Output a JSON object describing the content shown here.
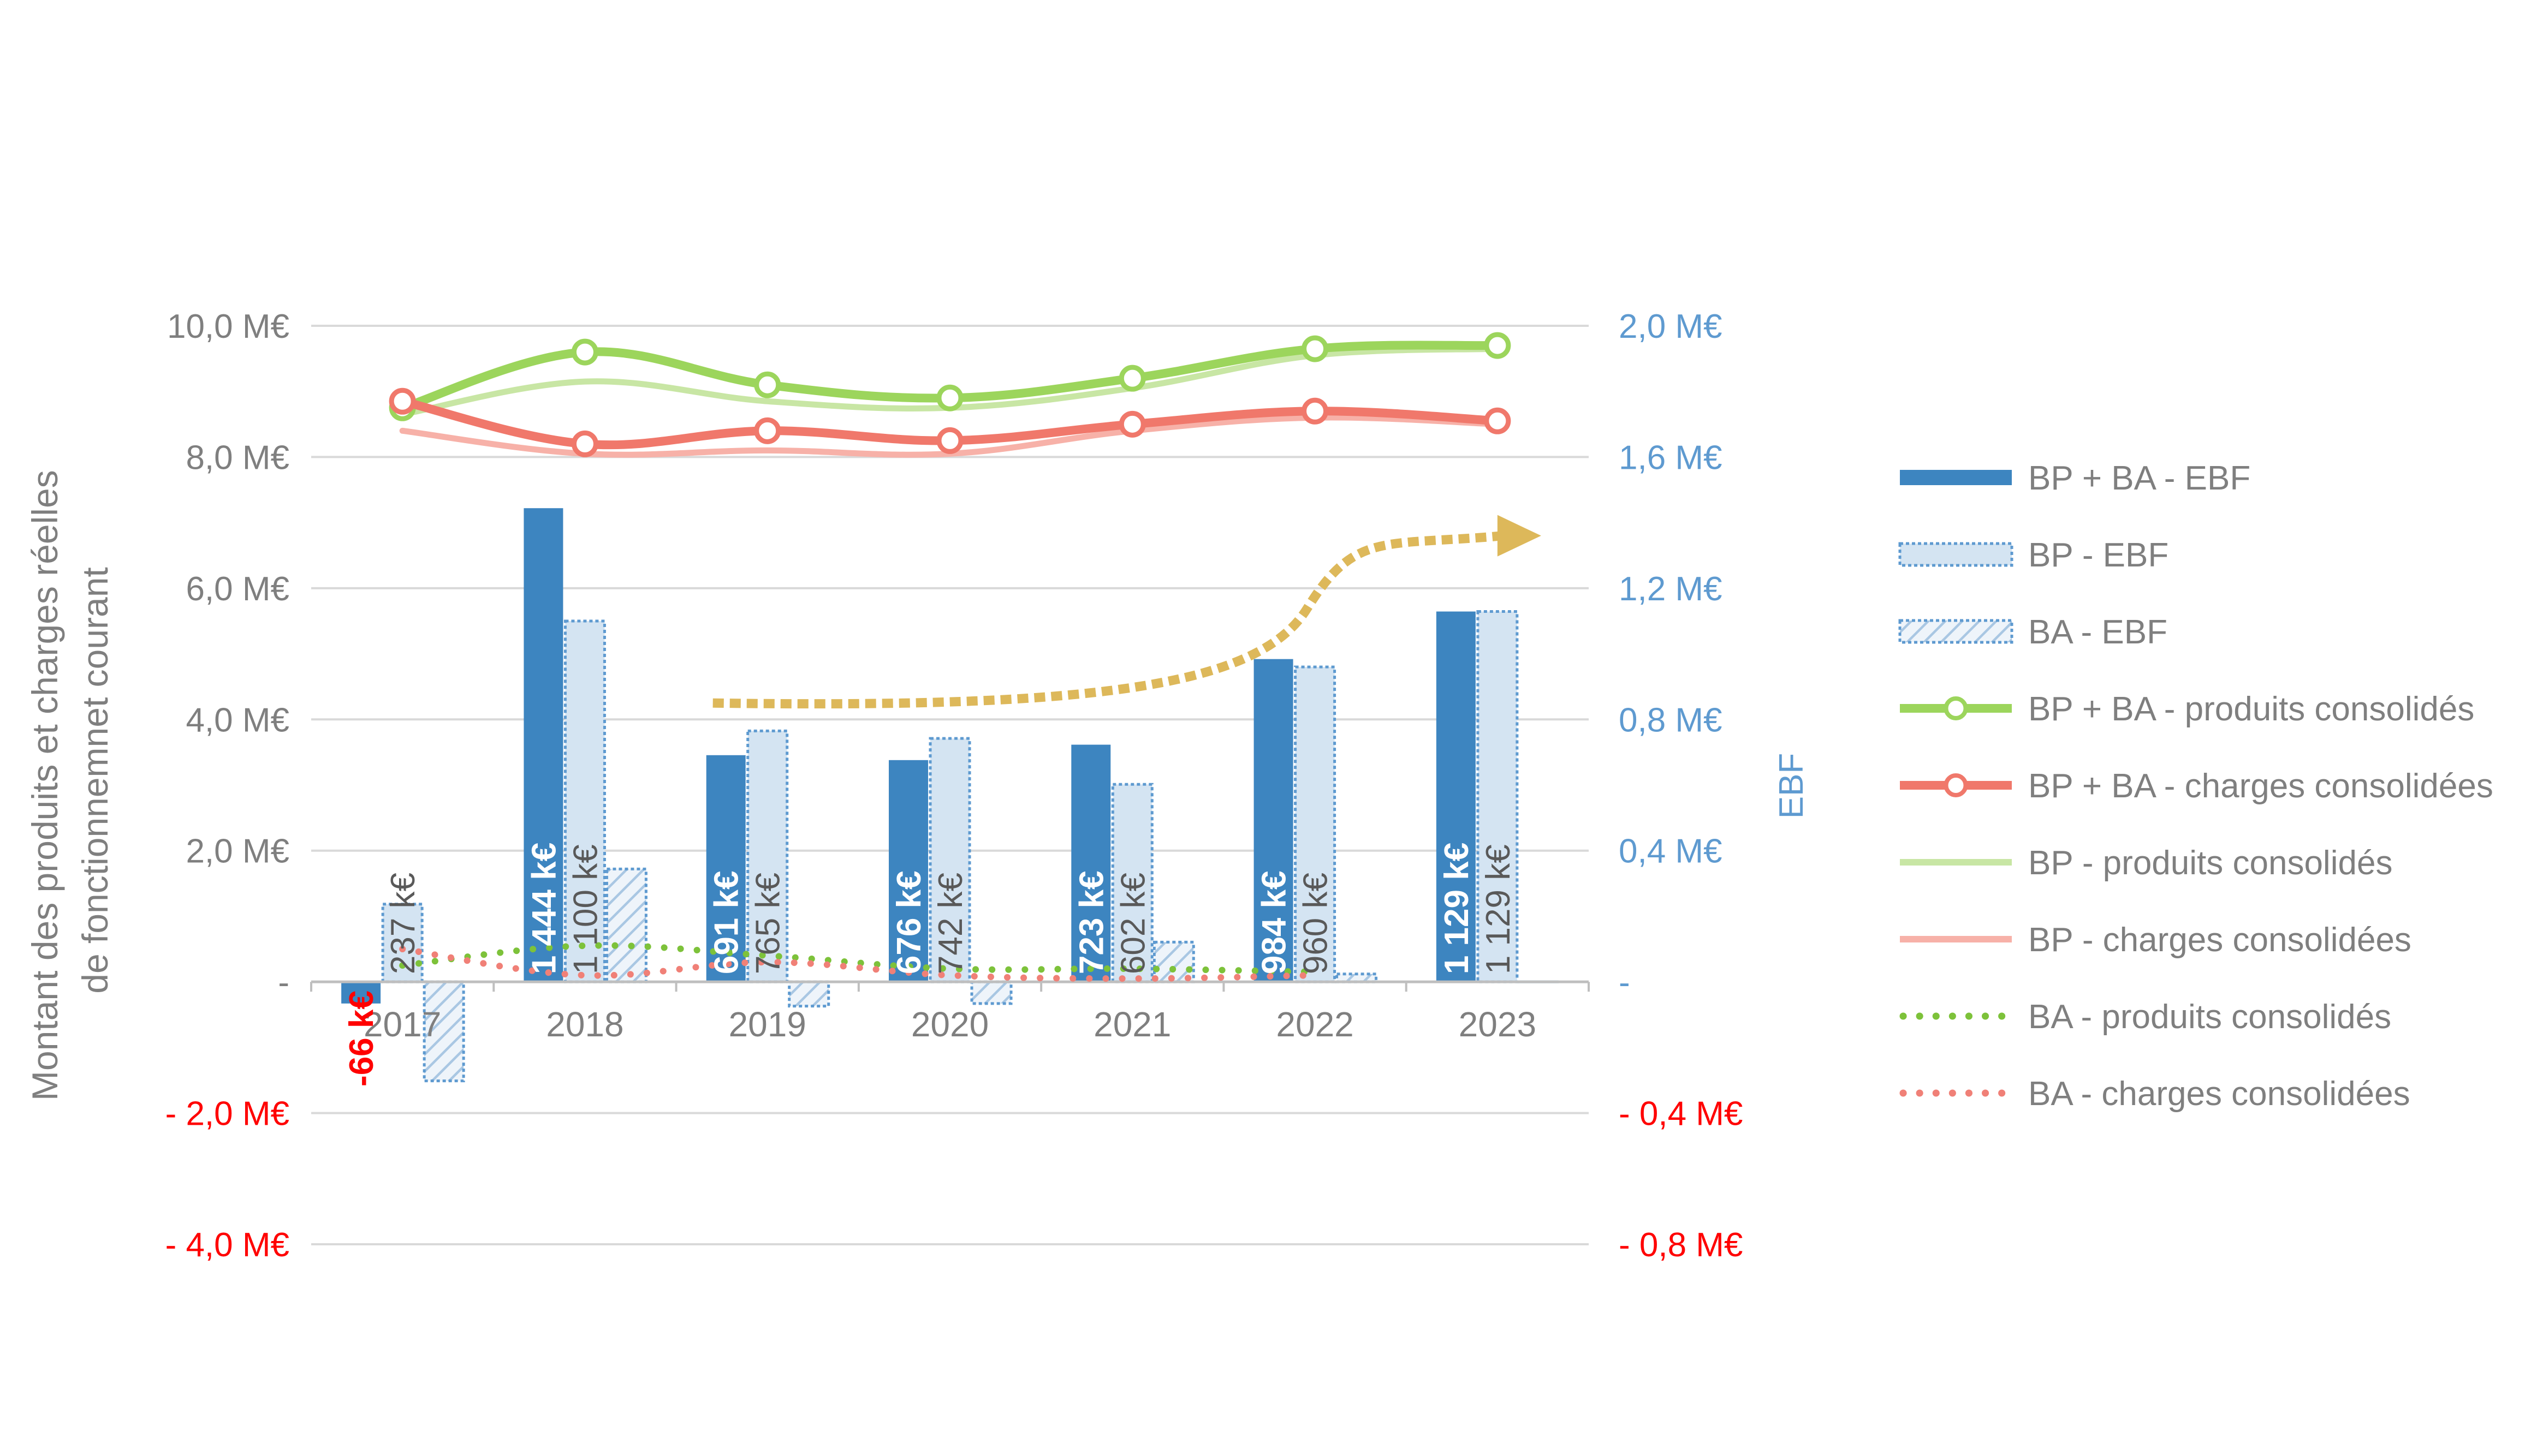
{
  "chart_data": {
    "type": "bar",
    "categories": [
      "2017",
      "2018",
      "2019",
      "2020",
      "2021",
      "2022",
      "2023"
    ],
    "left_axis": {
      "title": "Montant des produits et charges réelles de fonctionnemnet courant",
      "title_lines": [
        "Montant des produits et charges réelles",
        "de fonctionnemnet courant"
      ],
      "ticks": [
        {
          "value": 10,
          "label": "10,0 M€",
          "negative": false
        },
        {
          "value": 8,
          "label": "8,0 M€",
          "negative": false
        },
        {
          "value": 6,
          "label": "6,0 M€",
          "negative": false
        },
        {
          "value": 4,
          "label": "4,0 M€",
          "negative": false
        },
        {
          "value": 2,
          "label": "2,0 M€",
          "negative": false
        },
        {
          "value": 0,
          "label": "-",
          "negative": false
        },
        {
          "value": -2,
          "label": "- 2,0 M€",
          "negative": true
        },
        {
          "value": -4,
          "label": "- 4,0 M€",
          "negative": true
        }
      ],
      "range": [
        -4,
        10
      ],
      "unit": "M€"
    },
    "right_axis": {
      "title": "EBF",
      "ticks": [
        {
          "value": 2,
          "label": "2,0 M€",
          "negative": false
        },
        {
          "value": 1.6,
          "label": "1,6 M€",
          "negative": false
        },
        {
          "value": 1.2,
          "label": "1,2 M€",
          "negative": false
        },
        {
          "value": 0.8,
          "label": "0,8 M€",
          "negative": false
        },
        {
          "value": 0.4,
          "label": "0,4 M€",
          "negative": false
        },
        {
          "value": 0,
          "label": "-",
          "negative": false
        },
        {
          "value": -0.4,
          "label": "- 0,4 M€",
          "negative": true
        },
        {
          "value": -0.8,
          "label": "- 0,8 M€",
          "negative": true
        }
      ],
      "range": [
        -0.8,
        2
      ],
      "unit": "M€"
    },
    "bar_series": [
      {
        "name": "BP + BA - EBF",
        "axis": "right",
        "values_keur": [
          -66,
          1444,
          691,
          676,
          723,
          984,
          1129
        ],
        "labels": [
          "-66 k€",
          "1 444 k€",
          "691 k€",
          "676 k€",
          "723 k€",
          "984 k€",
          "1 129 k€"
        ]
      },
      {
        "name": "BP - EBF",
        "axis": "right",
        "values_keur": [
          237,
          1100,
          765,
          742,
          602,
          960,
          1129
        ],
        "labels": [
          "237 k€",
          "1 100 k€",
          "765 k€",
          "742 k€",
          "602 k€",
          "960 k€",
          "1 129 k€"
        ]
      },
      {
        "name": "BA - EBF",
        "axis": "right",
        "values_keur": [
          -302,
          344,
          -74,
          -66,
          121,
          24,
          0
        ],
        "labels": []
      }
    ],
    "line_series": [
      {
        "name": "BP + BA - produits consolidés",
        "axis": "left",
        "values": [
          8.75,
          9.6,
          9.1,
          8.9,
          9.2,
          9.65,
          9.7
        ]
      },
      {
        "name": "BP + BA - charges consolidées",
        "axis": "left",
        "values": [
          8.85,
          8.2,
          8.4,
          8.25,
          8.5,
          8.7,
          8.55
        ]
      },
      {
        "name": "BP - produits consolidés",
        "axis": "left",
        "values": [
          8.65,
          9.15,
          8.85,
          8.75,
          9.05,
          9.55,
          9.65
        ]
      },
      {
        "name": "BP - charges consolidées",
        "axis": "left",
        "values": [
          8.4,
          8.05,
          8.1,
          8.05,
          8.4,
          8.6,
          8.5
        ]
      },
      {
        "name": "BA - produits consolidés",
        "axis": "left",
        "values": [
          0.25,
          0.55,
          0.4,
          0.2,
          0.2,
          0.15
        ]
      },
      {
        "name": "BA - charges consolidées",
        "axis": "left",
        "values": [
          0.5,
          0.1,
          0.3,
          0.1,
          0.05,
          0.1
        ]
      }
    ],
    "legend": {
      "position": "right"
    },
    "grid": {
      "horizontal": true,
      "vertical": false
    },
    "trend_arrow": {
      "from_category": "2019",
      "to_category": "2023"
    },
    "colors": {
      "ebf_total": "#3D85C0",
      "ebf_bp_fill": "#D4E4F2",
      "ebf_bp_border": "#5E9AD0",
      "ebf_ba_hatch": "#A9C7E3",
      "produits_total": "#9CD55C",
      "charges_total": "#F0786B",
      "produits_bp": "#C8E6A4",
      "charges_bp": "#F7B1A8",
      "produits_ba": "#7DC23A",
      "charges_ba": "#F08077",
      "trend_arrow": "#DDB85A",
      "left_axis_text": "#7F7F7F",
      "right_axis_text": "#5E9AD0",
      "negative_text": "#FF0000",
      "gridline": "#D9D9D9"
    }
  }
}
